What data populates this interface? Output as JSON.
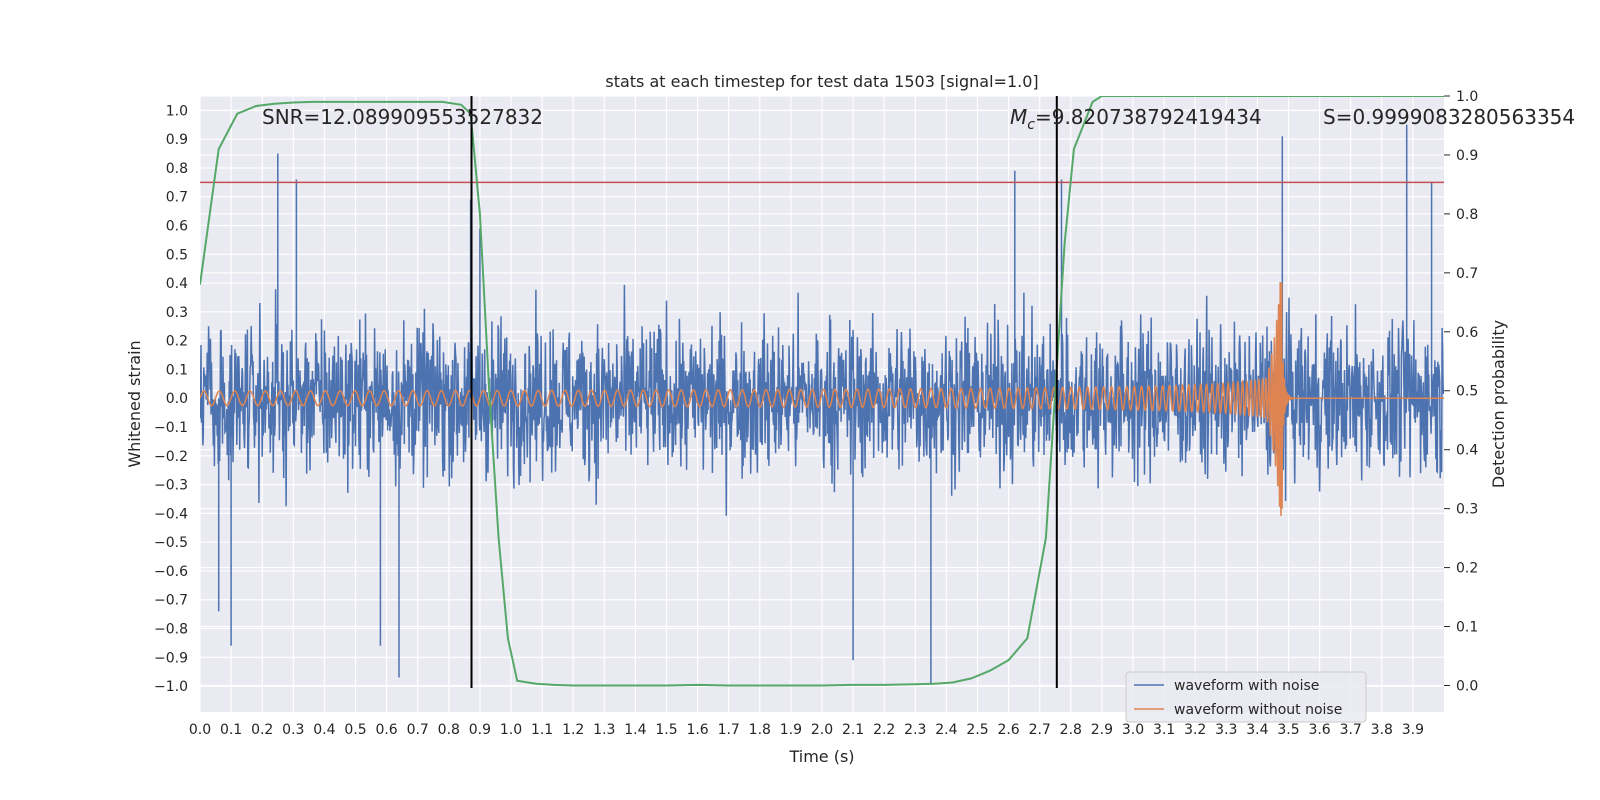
{
  "chart_data": {
    "type": "line",
    "title": "stats at each timestep for test data 1503 [signal=1.0]",
    "xlabel": "Time (s)",
    "ylabel": "Whitened strain",
    "ylabel_right": "Detection probability",
    "xlim": [
      0.0,
      4.0
    ],
    "ylim": [
      -1.09,
      1.05
    ],
    "ylim_right": [
      -0.045,
      1.0
    ],
    "xticks": [
      0.0,
      0.1,
      0.2,
      0.3,
      0.4,
      0.5,
      0.6,
      0.7,
      0.8,
      0.9,
      1.0,
      1.1,
      1.2,
      1.3,
      1.4,
      1.5,
      1.6,
      1.7,
      1.8,
      1.9,
      2.0,
      2.1,
      2.2,
      2.3,
      2.4,
      2.5,
      2.6,
      2.7,
      2.8,
      2.9,
      3.0,
      3.1,
      3.2,
      3.3,
      3.4,
      3.5,
      3.6,
      3.7,
      3.8,
      3.9
    ],
    "xtick_labels": [
      "0.0",
      "0.1",
      "0.2",
      "0.3",
      "0.4",
      "0.5",
      "0.6",
      "0.7",
      "0.8",
      "0.9",
      "1.0",
      "1.1",
      "1.2",
      "1.3",
      "1.4",
      "1.5",
      "1.6",
      "1.7",
      "1.8",
      "1.9",
      "2.0",
      "2.1",
      "2.2",
      "2.3",
      "2.4",
      "2.5",
      "2.6",
      "2.7",
      "2.8",
      "2.9",
      "3.0",
      "3.1",
      "3.2",
      "3.3",
      "3.4",
      "3.5",
      "3.6",
      "3.7",
      "3.8",
      "3.9"
    ],
    "yticks": [
      -1.0,
      -0.9,
      -0.8,
      -0.7,
      -0.6,
      -0.5,
      -0.4,
      -0.3,
      -0.2,
      -0.1,
      0.0,
      0.1,
      0.2,
      0.3,
      0.4,
      0.5,
      0.6,
      0.7,
      0.8,
      0.9,
      1.0
    ],
    "ytick_labels": [
      "−1.0",
      "−0.9",
      "−0.8",
      "−0.7",
      "−0.6",
      "−0.5",
      "−0.4",
      "−0.3",
      "−0.2",
      "−0.1",
      "0.0",
      "0.1",
      "0.2",
      "0.3",
      "0.4",
      "0.5",
      "0.6",
      "0.7",
      "0.8",
      "0.9",
      "1.0"
    ],
    "yticks_right": [
      0.0,
      0.1,
      0.2,
      0.3,
      0.4,
      0.5,
      0.6,
      0.7,
      0.8,
      0.9,
      1.0
    ],
    "ytick_labels_right": [
      "0.0",
      "0.1",
      "0.2",
      "0.3",
      "0.4",
      "0.5",
      "0.6",
      "0.7",
      "0.8",
      "0.9",
      "1.0"
    ],
    "series": [
      {
        "name": "waveform with noise",
        "color": "#4c72b0",
        "axis": "left",
        "description": "noisy whitened strain, approx. amplitude envelope",
        "noise_amplitude": 0.45,
        "spike_points": [
          [
            0.06,
            -0.74
          ],
          [
            0.1,
            -0.86
          ],
          [
            0.25,
            0.85
          ],
          [
            0.31,
            0.76
          ],
          [
            0.64,
            -0.97
          ],
          [
            0.58,
            -0.86
          ],
          [
            0.87,
            0.69
          ],
          [
            0.9,
            0.59
          ],
          [
            2.1,
            -0.91
          ],
          [
            2.35,
            -0.99
          ],
          [
            2.62,
            0.79
          ],
          [
            2.77,
            0.76
          ],
          [
            3.48,
            0.91
          ],
          [
            3.88,
            0.95
          ],
          [
            3.96,
            0.75
          ]
        ]
      },
      {
        "name": "waveform without noise",
        "color": "#dd8452",
        "axis": "left",
        "description": "chirp template",
        "t_start": 0.0,
        "t_merge": 3.48,
        "f_start": 20,
        "f_end": 120,
        "amp_start": 0.025,
        "amp_peak": 0.45
      },
      {
        "name": "detection probability",
        "color": "#55a868",
        "axis": "right",
        "x": [
          0.0,
          0.06,
          0.12,
          0.18,
          0.24,
          0.3,
          0.36,
          0.42,
          0.48,
          0.54,
          0.6,
          0.66,
          0.72,
          0.78,
          0.84,
          0.87,
          0.9,
          0.93,
          0.96,
          0.99,
          1.02,
          1.08,
          1.14,
          1.2,
          1.3,
          1.4,
          1.5,
          1.6,
          1.7,
          1.8,
          1.9,
          2.0,
          2.1,
          2.2,
          2.3,
          2.36,
          2.42,
          2.48,
          2.54,
          2.6,
          2.66,
          2.72,
          2.75,
          2.78,
          2.81,
          2.87,
          2.9,
          3.0,
          3.1,
          3.2,
          3.3,
          3.4,
          3.5,
          3.6,
          3.7,
          3.8,
          3.9,
          4.0
        ],
        "y": [
          0.68,
          0.91,
          0.97,
          0.983,
          0.987,
          0.989,
          0.99,
          0.99,
          0.99,
          0.99,
          0.99,
          0.99,
          0.99,
          0.99,
          0.985,
          0.97,
          0.8,
          0.5,
          0.25,
          0.08,
          0.008,
          0.003,
          0.001,
          0.0,
          0.0,
          0.0,
          0.0,
          0.001,
          0.0,
          0.0,
          0.0,
          0.0,
          0.001,
          0.001,
          0.002,
          0.003,
          0.005,
          0.012,
          0.025,
          0.043,
          0.08,
          0.25,
          0.5,
          0.75,
          0.91,
          0.99,
          1.0,
          1.0,
          1.0,
          1.0,
          1.0,
          1.0,
          1.0,
          1.0,
          1.0,
          1.0,
          1.0,
          1.0
        ]
      }
    ],
    "hlines": [
      {
        "y": 0.75,
        "axis": "left",
        "color": "#c44e52"
      }
    ],
    "vlines": [
      {
        "x": 0.873,
        "color": "#000000"
      },
      {
        "x": 2.755,
        "color": "#000000"
      }
    ],
    "annotations": {
      "snr": "SNR=12.089909553527832",
      "mc_symbol": "M",
      "mc_subscript": "c",
      "mc_value": "=9.820738792419434",
      "s": "S=0.9999083280563354"
    },
    "legend": {
      "position": "lower-right",
      "entries": [
        "waveform with noise",
        "waveform without noise"
      ]
    },
    "grid": true,
    "background": "#eaeaf2"
  }
}
